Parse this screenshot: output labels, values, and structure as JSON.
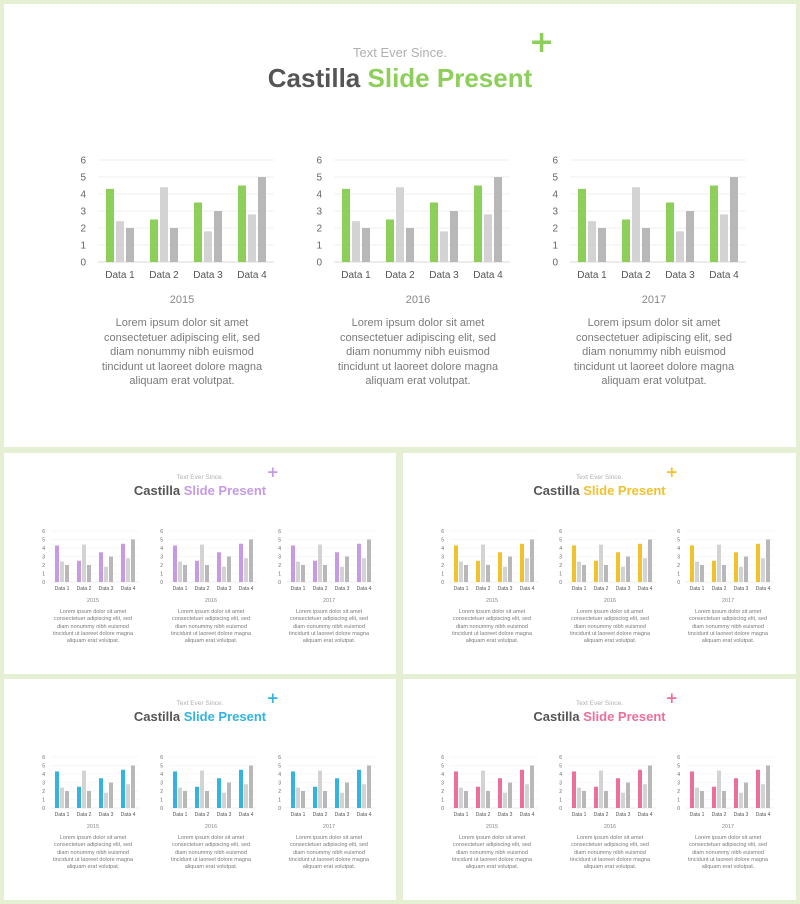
{
  "slides": [
    {
      "key": "main",
      "accent": "#8dcf5a",
      "subtitle": "Text Ever Since.",
      "title_part1": "Castilla",
      "title_part2": "Slide Present",
      "plus_icon": "plus-icon"
    },
    {
      "key": "purple",
      "accent": "#c79ae6",
      "subtitle": "Text Ever Since.",
      "title_part1": "Castilla",
      "title_part2": "Slide Present",
      "plus_icon": "plus-icon"
    },
    {
      "key": "yellow",
      "accent": "#f2c12e",
      "subtitle": "Text Ever Since.",
      "title_part1": "Castilla",
      "title_part2": "Slide Present",
      "plus_icon": "plus-icon"
    },
    {
      "key": "blue",
      "accent": "#33b3e0",
      "subtitle": "Text Ever Since.",
      "title_part1": "Castilla",
      "title_part2": "Slide Present",
      "plus_icon": "plus-icon"
    },
    {
      "key": "pink",
      "accent": "#ec6f9a",
      "subtitle": "Text Ever Since.",
      "title_part1": "Castilla",
      "title_part2": "Slide Present",
      "plus_icon": "plus-icon"
    }
  ],
  "panels": [
    {
      "year": "2015",
      "text": "Lorem ipsum dolor sit amet consectetuer adipiscing elit, sed diam nonummy nibh euismod tincidunt ut laoreet dolore magna aliquam erat volutpat."
    },
    {
      "year": "2016",
      "text": "Lorem ipsum dolor sit amet consectetuer adipiscing elit, sed diam nonummy nibh euismod tincidunt ut laoreet dolore magna aliquam erat volutpat."
    },
    {
      "year": "2017",
      "text": "Lorem ipsum dolor sit amet consectetuer adipiscing elit, sed diam nonummy nibh euismod tincidunt ut laoreet dolore magna aliquam erat volutpat."
    }
  ],
  "body_lines": [
    "Lorem ipsum dolor sit amet",
    "consectetuer adipiscing elit, sed",
    "diam nonummy nibh euismod",
    "tincidunt ut laoreet dolore magna",
    "aliquam erat volutpat."
  ],
  "chart_data": {
    "type": "bar",
    "categories": [
      "Data 1",
      "Data 2",
      "Data 3",
      "Data 4"
    ],
    "series": [
      {
        "values": [
          4.3,
          2.5,
          3.5,
          4.5
        ],
        "color": "accent"
      },
      {
        "values": [
          2.4,
          4.4,
          1.8,
          2.8
        ],
        "color": "#d3d3d3"
      },
      {
        "values": [
          2.0,
          2.0,
          3.0,
          5.0
        ],
        "color": "#b8b8b8"
      }
    ],
    "ylim": [
      0,
      6
    ],
    "yticks": [
      0,
      1,
      2,
      3,
      4,
      5,
      6
    ],
    "grid": true
  }
}
